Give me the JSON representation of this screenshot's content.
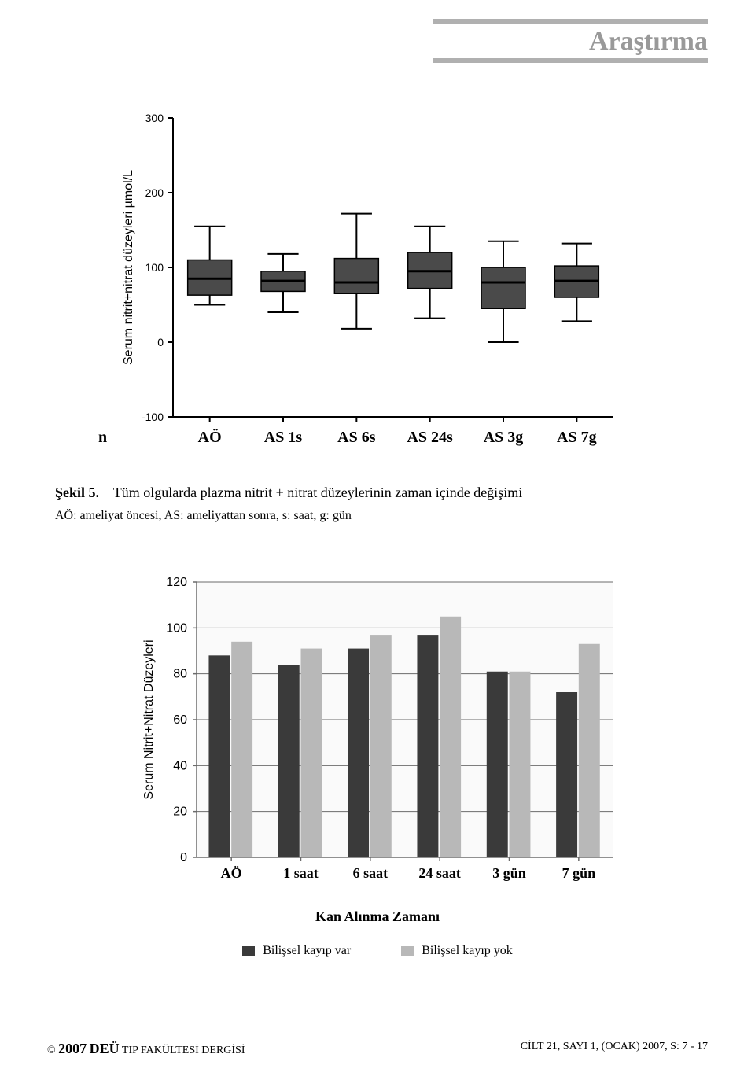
{
  "header": {
    "title": "Araştırma",
    "line_color": "#b0b0b0",
    "title_color": "#999999"
  },
  "boxplot": {
    "type": "boxplot",
    "ylabel": "Serum nitrit+nitrat düzeyleri µmol/L",
    "ylim": [
      -100,
      300
    ],
    "yticks": [
      -100,
      0,
      100,
      200,
      300
    ],
    "categories": [
      "AÖ",
      "AS 1s",
      "AS 6s",
      "AS 24s",
      "AS 3g",
      "AS 7g"
    ],
    "pre_label": "n",
    "boxes": [
      {
        "low": 50,
        "q1": 63,
        "median": 85,
        "q3": 110,
        "high": 155
      },
      {
        "low": 40,
        "q1": 68,
        "median": 82,
        "q3": 95,
        "high": 118
      },
      {
        "low": 18,
        "q1": 65,
        "median": 80,
        "q3": 112,
        "high": 172
      },
      {
        "low": 32,
        "q1": 72,
        "median": 95,
        "q3": 120,
        "high": 155
      },
      {
        "low": 0,
        "q1": 45,
        "median": 80,
        "q3": 100,
        "high": 135
      },
      {
        "low": 28,
        "q1": 60,
        "median": 82,
        "q3": 102,
        "high": 132
      }
    ],
    "box_fill": "#4a4a4a",
    "line_color": "#000000",
    "axis_color": "#000000",
    "tick_fontsize": 14,
    "ylabel_fontsize": 16,
    "xcat_fontsize": 20
  },
  "caption": {
    "label": "Şekil 5.",
    "text": "Tüm olgularda plazma nitrit + nitrat düzeylerinin zaman içinde değişimi",
    "note": "AÖ: ameliyat öncesi, AS: ameliyattan sonra, s: saat, g: gün"
  },
  "barchart": {
    "type": "bar",
    "ylabel": "Serum Nitrit+Nitrat Düzeyleri",
    "xlabel": "Kan Alınma Zamanı",
    "ylim": [
      0,
      120
    ],
    "ytick_step": 20,
    "yticks": [
      0,
      20,
      40,
      60,
      80,
      100,
      120
    ],
    "categories": [
      "AÖ",
      "1 saat",
      "6 saat",
      "24 saat",
      "3 gün",
      "7 gün"
    ],
    "series": [
      {
        "name": "Bilişsel kayıp var",
        "color": "#3a3a3a",
        "values": [
          88,
          84,
          91,
          97,
          81,
          72
        ]
      },
      {
        "name": "Bilişsel kayıp yok",
        "color": "#b8b8b8",
        "values": [
          94,
          91,
          97,
          105,
          81,
          93
        ]
      }
    ],
    "background": "#ffffff",
    "plot_bg": "#fafafa",
    "grid_color": "#6b6b6b",
    "axis_color": "#6b6b6b",
    "bar_group_gap": 0.35,
    "bar_within_gap": 0.02,
    "tick_fontsize": 16,
    "ylabel_fontsize": 16,
    "xcat_fontsize": 18
  },
  "footer": {
    "left_prefix": "© ",
    "left_year": "2007",
    "left_bold": "DEÜ",
    "left_rest": " TIP FAKÜLTESİ DERGİSİ",
    "right": "CİLT 21, SAYI 1, (OCAK) 2007, S: 7 - 17"
  }
}
